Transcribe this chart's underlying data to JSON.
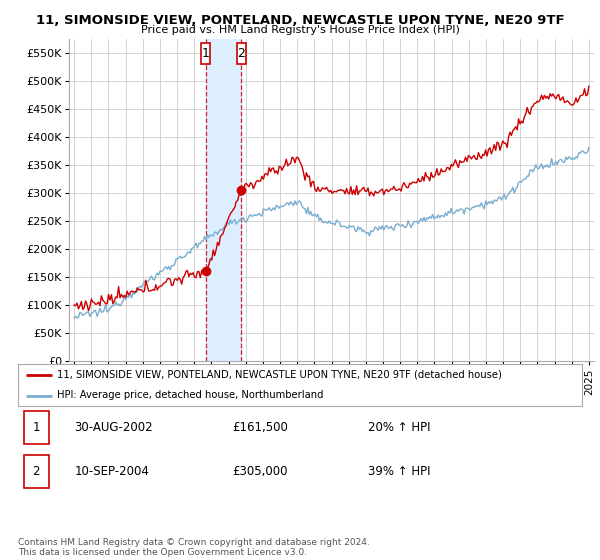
{
  "title": "11, SIMONSIDE VIEW, PONTELAND, NEWCASTLE UPON TYNE, NE20 9TF",
  "subtitle": "Price paid vs. HM Land Registry's House Price Index (HPI)",
  "legend_line1": "11, SIMONSIDE VIEW, PONTELAND, NEWCASTLE UPON TYNE, NE20 9TF (detached house)",
  "legend_line2": "HPI: Average price, detached house, Northumberland",
  "transaction1_date": "30-AUG-2002",
  "transaction1_price": "£161,500",
  "transaction1_hpi": "20% ↑ HPI",
  "transaction2_date": "10-SEP-2004",
  "transaction2_price": "£305,000",
  "transaction2_hpi": "39% ↑ HPI",
  "footnote": "Contains HM Land Registry data © Crown copyright and database right 2024.\nThis data is licensed under the Open Government Licence v3.0.",
  "red_color": "#cc0000",
  "blue_color": "#7aadcf",
  "shade_color": "#ddeeff",
  "grid_color": "#cccccc",
  "ylim": [
    0,
    575000
  ],
  "yticks": [
    0,
    50000,
    100000,
    150000,
    200000,
    250000,
    300000,
    350000,
    400000,
    450000,
    500000,
    550000
  ],
  "ytick_labels": [
    "£0",
    "£50K",
    "£100K",
    "£150K",
    "£200K",
    "£250K",
    "£300K",
    "£350K",
    "£400K",
    "£450K",
    "£500K",
    "£550K"
  ]
}
